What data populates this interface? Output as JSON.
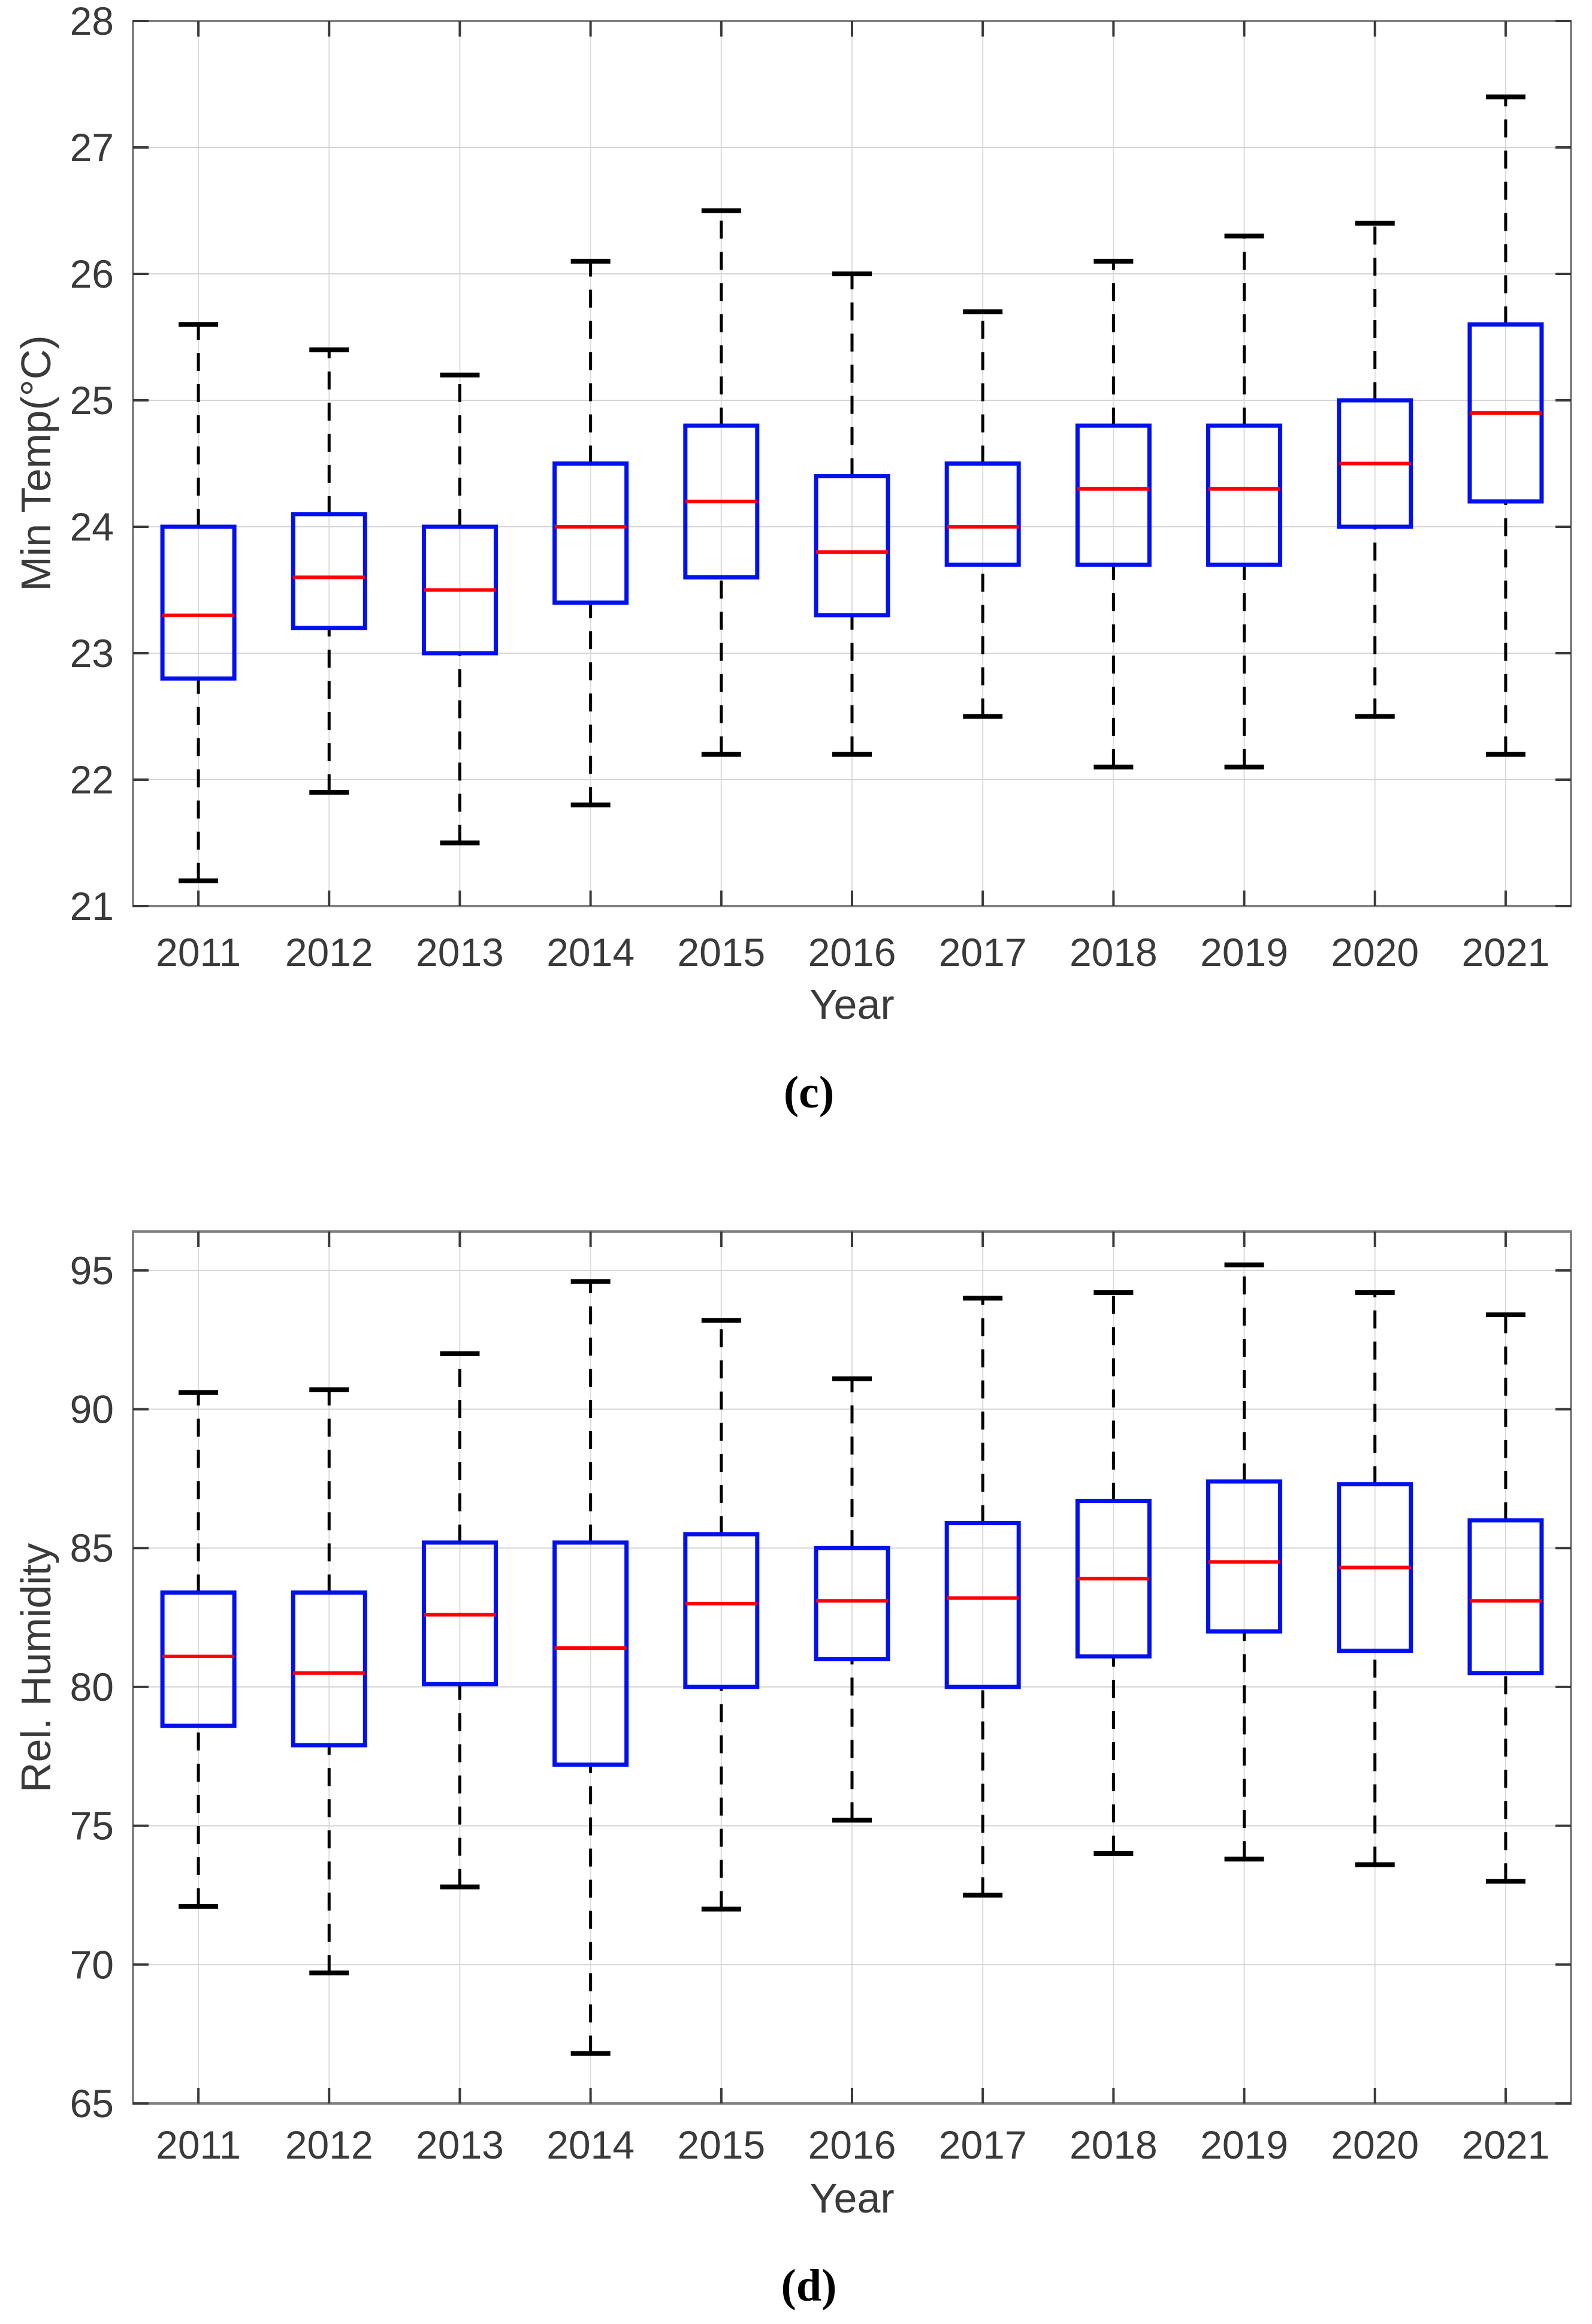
{
  "page": {
    "background": "#ffffff",
    "figure_type": "two stacked MATLAB-style box plots"
  },
  "colors": {
    "box": "#0010ee",
    "median": "#ff0000",
    "whisker": "#000000",
    "grid": "#d5d5d5",
    "spine": "#7f7f7f",
    "text": "#3a3a3a"
  },
  "chart_data": [
    {
      "type": "boxplot",
      "caption": "(c)",
      "title": "",
      "xlabel": "Year",
      "ylabel": "Min Temp(°C)",
      "categories": [
        "2011",
        "2012",
        "2013",
        "2014",
        "2015",
        "2016",
        "2017",
        "2018",
        "2019",
        "2020",
        "2021"
      ],
      "ylim": [
        21,
        28
      ],
      "yticks": [
        21,
        22,
        23,
        24,
        25,
        26,
        27,
        28
      ],
      "grid": true,
      "legend": "none",
      "series": [
        {
          "year": "2011",
          "whisker_low": 21.2,
          "q1": 22.8,
          "median": 23.3,
          "q3": 24.0,
          "whisker_high": 25.6
        },
        {
          "year": "2012",
          "whisker_low": 21.9,
          "q1": 23.2,
          "median": 23.6,
          "q3": 24.1,
          "whisker_high": 25.4
        },
        {
          "year": "2013",
          "whisker_low": 21.5,
          "q1": 23.0,
          "median": 23.5,
          "q3": 24.0,
          "whisker_high": 25.2
        },
        {
          "year": "2014",
          "whisker_low": 21.8,
          "q1": 23.4,
          "median": 24.0,
          "q3": 24.5,
          "whisker_high": 26.1
        },
        {
          "year": "2015",
          "whisker_low": 22.2,
          "q1": 23.6,
          "median": 24.2,
          "q3": 24.8,
          "whisker_high": 26.5
        },
        {
          "year": "2016",
          "whisker_low": 22.2,
          "q1": 23.3,
          "median": 23.8,
          "q3": 24.4,
          "whisker_high": 26.0
        },
        {
          "year": "2017",
          "whisker_low": 22.5,
          "q1": 23.7,
          "median": 24.0,
          "q3": 24.5,
          "whisker_high": 25.7
        },
        {
          "year": "2018",
          "whisker_low": 22.1,
          "q1": 23.7,
          "median": 24.3,
          "q3": 24.8,
          "whisker_high": 26.1
        },
        {
          "year": "2019",
          "whisker_low": 22.1,
          "q1": 23.7,
          "median": 24.3,
          "q3": 24.8,
          "whisker_high": 26.3
        },
        {
          "year": "2020",
          "whisker_low": 22.5,
          "q1": 24.0,
          "median": 24.5,
          "q3": 25.0,
          "whisker_high": 26.4
        },
        {
          "year": "2021",
          "whisker_low": 22.2,
          "q1": 24.2,
          "median": 24.9,
          "q3": 25.6,
          "whisker_high": 27.4
        }
      ]
    },
    {
      "type": "boxplot",
      "caption": "(d)",
      "title": "",
      "xlabel": "Year",
      "ylabel": "Rel. Humidity",
      "categories": [
        "2011",
        "2012",
        "2013",
        "2014",
        "2015",
        "2016",
        "2017",
        "2018",
        "2019",
        "2020",
        "2021"
      ],
      "ylim": [
        65,
        96.4
      ],
      "yticks": [
        65,
        70,
        75,
        80,
        85,
        90,
        95
      ],
      "grid": true,
      "legend": "none",
      "series": [
        {
          "year": "2011",
          "whisker_low": 72.1,
          "q1": 78.6,
          "median": 81.1,
          "q3": 83.4,
          "whisker_high": 90.6
        },
        {
          "year": "2012",
          "whisker_low": 69.7,
          "q1": 77.9,
          "median": 80.5,
          "q3": 83.4,
          "whisker_high": 90.7
        },
        {
          "year": "2013",
          "whisker_low": 72.8,
          "q1": 80.1,
          "median": 82.6,
          "q3": 85.2,
          "whisker_high": 92.0
        },
        {
          "year": "2014",
          "whisker_low": 66.8,
          "q1": 77.2,
          "median": 81.4,
          "q3": 85.2,
          "whisker_high": 94.6
        },
        {
          "year": "2015",
          "whisker_low": 72.0,
          "q1": 80.0,
          "median": 83.0,
          "q3": 85.5,
          "whisker_high": 93.2
        },
        {
          "year": "2016",
          "whisker_low": 75.2,
          "q1": 81.0,
          "median": 83.1,
          "q3": 85.0,
          "whisker_high": 91.1
        },
        {
          "year": "2017",
          "whisker_low": 72.5,
          "q1": 80.0,
          "median": 83.2,
          "q3": 85.9,
          "whisker_high": 94.0
        },
        {
          "year": "2018",
          "whisker_low": 74.0,
          "q1": 81.1,
          "median": 83.9,
          "q3": 86.7,
          "whisker_high": 94.2
        },
        {
          "year": "2019",
          "whisker_low": 73.8,
          "q1": 82.0,
          "median": 84.5,
          "q3": 87.4,
          "whisker_high": 95.2
        },
        {
          "year": "2020",
          "whisker_low": 73.6,
          "q1": 81.3,
          "median": 84.3,
          "q3": 87.3,
          "whisker_high": 94.2
        },
        {
          "year": "2021",
          "whisker_low": 73.0,
          "q1": 80.5,
          "median": 83.1,
          "q3": 86.0,
          "whisker_high": 93.4
        }
      ]
    }
  ]
}
